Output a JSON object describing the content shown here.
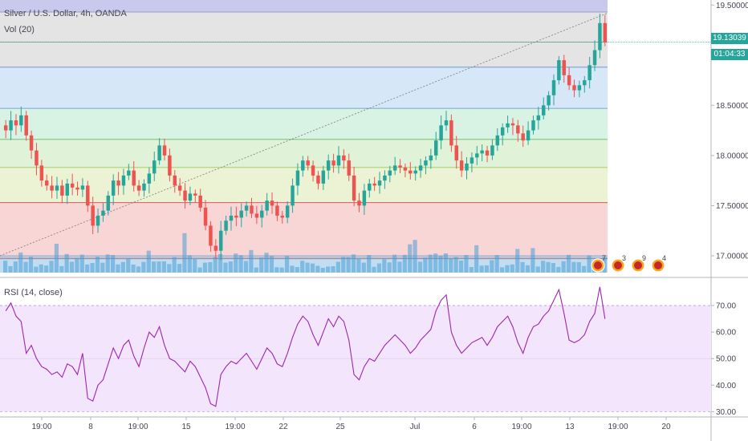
{
  "header": {
    "symbol": "Silver / U.S. Dollar, 4h, OANDA",
    "volume_label": "Vol (20)",
    "rsi_label": "RSI (14, close)"
  },
  "price_tags": {
    "last_price": "19.13039",
    "countdown": "01:04:33",
    "last_price_color": "#26a69a",
    "countdown_color": "#26a69a"
  },
  "colors": {
    "up_candle": "#26a69a",
    "down_candle": "#ef5350",
    "volume": "#4a9fd6",
    "rsi_line": "#9c27b0",
    "rsi_band": "#f3e5fb",
    "trend_line": "#7a7a7a"
  },
  "chart_data": [
    {
      "type": "candlestick",
      "title": "Silver / U.S. Dollar, 4h, OANDA",
      "ylim": [
        16.8,
        19.55
      ],
      "y_ticks": [
        "19.50000",
        "19.00000",
        "18.50000",
        "18.00000",
        "17.50000",
        "17.00000"
      ],
      "y_tick_values": [
        19.5,
        19.0,
        18.5,
        18.0,
        17.5,
        17.0
      ],
      "x_tick_labels": [
        "19:00",
        "8",
        "19:00",
        "15",
        "19:00",
        "22",
        "25",
        "Jul",
        "6",
        "19:00",
        "13",
        "19:00",
        "20"
      ],
      "last_price": 19.13039,
      "fibonacci_levels": [
        19.43,
        19.13,
        18.88,
        18.47,
        18.16,
        17.88,
        17.53,
        16.97
      ],
      "fibonacci_zone_colors": [
        "#c9c9ee",
        "#e4e4e4",
        "#e4e4e4",
        "#d6e8f7",
        "#d8f2e3",
        "#e0f2d8",
        "#ecf3d4",
        "#f8d6d6"
      ],
      "trend_line": [
        [
          17.0,
          0
        ],
        [
          19.42,
          1
        ]
      ],
      "close_series": [
        18.25,
        18.35,
        18.3,
        18.4,
        18.2,
        18.05,
        17.9,
        17.75,
        17.7,
        17.65,
        17.7,
        17.6,
        17.72,
        17.68,
        17.66,
        17.7,
        17.5,
        17.3,
        17.4,
        17.45,
        17.6,
        17.75,
        17.7,
        17.8,
        17.85,
        17.7,
        17.65,
        17.72,
        17.82,
        17.95,
        18.1,
        18.0,
        17.8,
        17.7,
        17.65,
        17.55,
        17.62,
        17.6,
        17.48,
        17.3,
        17.1,
        17.05,
        17.25,
        17.35,
        17.4,
        17.38,
        17.45,
        17.5,
        17.42,
        17.38,
        17.45,
        17.55,
        17.5,
        17.4,
        17.38,
        17.5,
        17.7,
        17.85,
        17.95,
        17.9,
        17.8,
        17.72,
        17.85,
        17.95,
        17.9,
        18.0,
        17.95,
        17.8,
        17.55,
        17.5,
        17.65,
        17.72,
        17.7,
        17.75,
        17.8,
        17.85,
        17.9,
        17.88,
        17.85,
        17.82,
        17.85,
        17.9,
        17.95,
        18.0,
        18.15,
        18.3,
        18.35,
        18.1,
        17.95,
        17.85,
        17.92,
        17.98,
        18.02,
        18.05,
        18.0,
        18.1,
        18.2,
        18.28,
        18.32,
        18.3,
        18.22,
        18.15,
        18.25,
        18.35,
        18.4,
        18.5,
        18.6,
        18.75,
        18.95,
        18.8,
        18.7,
        18.65,
        18.7,
        18.75,
        18.9,
        19.05,
        19.32,
        19.13
      ],
      "volume_note": "volume bars drawn at bottom of price pane",
      "event_badges": [
        "7",
        "3",
        "9",
        "4"
      ]
    },
    {
      "type": "line",
      "title": "RSI (14, close)",
      "ylim": [
        28,
        80
      ],
      "y_ticks": [
        "70.00",
        "60.00",
        "50.00",
        "40.00",
        "30.00"
      ],
      "y_tick_values": [
        70,
        60,
        50,
        40,
        30
      ],
      "bands": [
        70,
        30
      ],
      "values": [
        68,
        71,
        66,
        64,
        52,
        55,
        50,
        47,
        46,
        44,
        45,
        43,
        48,
        47,
        44,
        52,
        35,
        34,
        40,
        42,
        48,
        54,
        50,
        55,
        57,
        51,
        47,
        54,
        60,
        58,
        62,
        55,
        50,
        49,
        47,
        45,
        49,
        47,
        43,
        39,
        33,
        32,
        44,
        47,
        49,
        48,
        50,
        52,
        49,
        46,
        50,
        54,
        52,
        48,
        47,
        52,
        58,
        63,
        66,
        64,
        59,
        55,
        60,
        65,
        62,
        66,
        64,
        57,
        44,
        42,
        47,
        50,
        49,
        52,
        55,
        57,
        59,
        57,
        55,
        52,
        54,
        57,
        59,
        61,
        68,
        72,
        74,
        60,
        55,
        52,
        54,
        56,
        57,
        58,
        55,
        58,
        62,
        64,
        66,
        62,
        56,
        52,
        58,
        62,
        63,
        66,
        68,
        72,
        76,
        67,
        57,
        56,
        57,
        59,
        64,
        67,
        77,
        65
      ]
    }
  ]
}
